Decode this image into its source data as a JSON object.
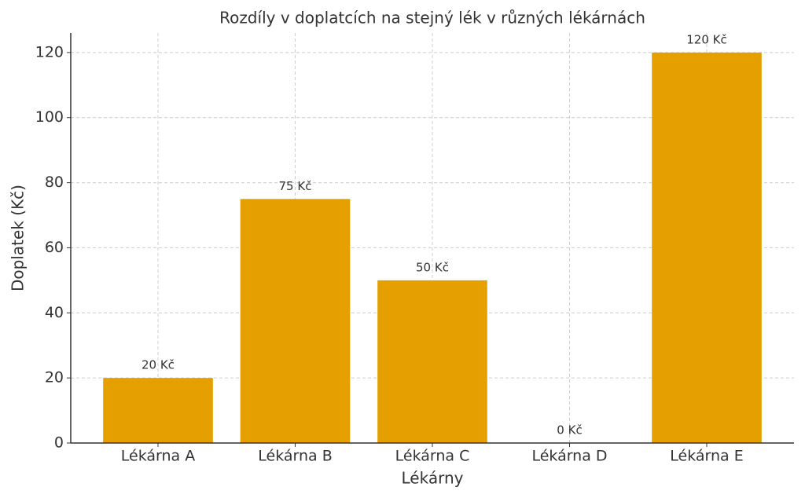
{
  "chart_data": {
    "type": "bar",
    "title": "Rozdíly v doplatcích na stejný lék v různých lékárnách",
    "x_label": "Lékárny",
    "y_label": "Doplatek (Kč)",
    "categories": [
      "Lékárna A",
      "Lékárna B",
      "Lékárna C",
      "Lékárna D",
      "Lékárna E"
    ],
    "values": [
      20,
      75,
      50,
      0,
      120
    ],
    "value_labels": [
      "20 Kč",
      "75 Kč",
      "50 Kč",
      "0 Kč",
      "120 Kč"
    ],
    "color": "#e5a000",
    "ylim": [
      0,
      126
    ],
    "yticks": [
      0,
      20,
      40,
      60,
      80,
      100,
      120
    ],
    "grid": true
  }
}
